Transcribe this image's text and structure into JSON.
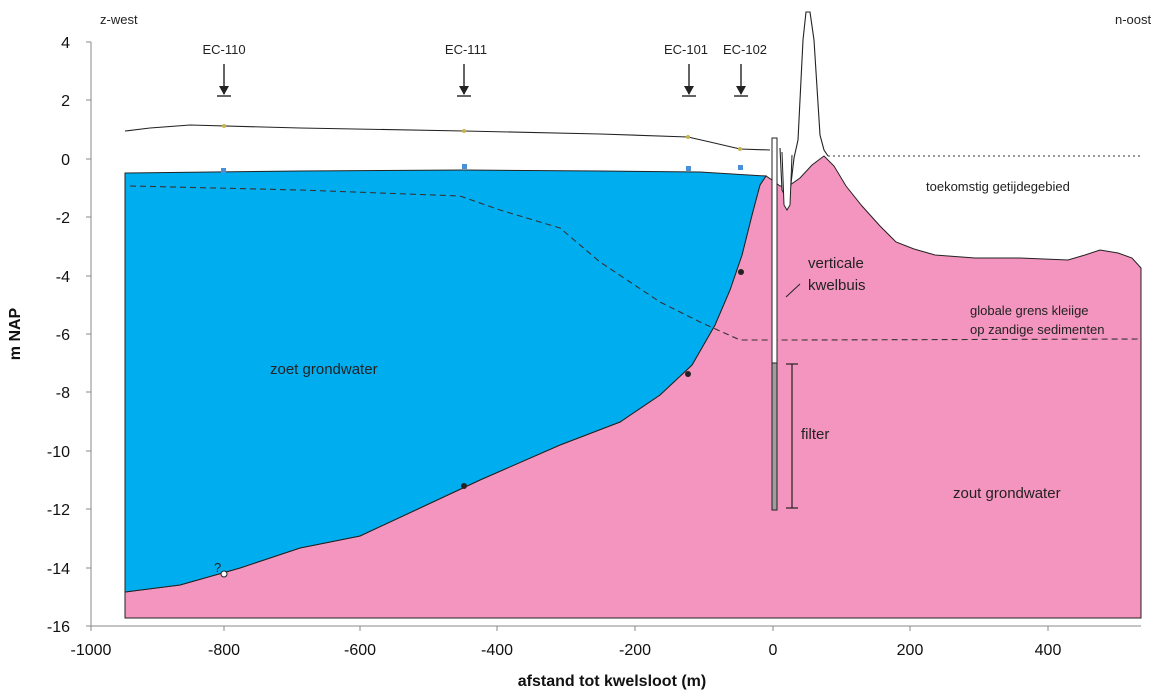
{
  "colors": {
    "fresh": "#00adef",
    "salt": "#f495bf",
    "outline": "#222222"
  },
  "orientation": {
    "left": "z-west",
    "right": "n-oost"
  },
  "axes": {
    "x_title": "afstand tot kwelsloot (m)",
    "y_title": "m NAP",
    "x_ticks": [
      "-1000",
      "-800",
      "-600",
      "-400",
      "-200",
      "0",
      "200",
      "400"
    ],
    "y_ticks": [
      "4",
      "2",
      "0",
      "-2",
      "-4",
      "-6",
      "-8",
      "-10",
      "-12",
      "-14",
      "-16"
    ]
  },
  "wells": [
    {
      "label": "EC-110",
      "x": -800
    },
    {
      "label": "EC-111",
      "x": -450
    },
    {
      "label": "EC-101",
      "x": -125
    },
    {
      "label": "EC-102",
      "x": -50
    }
  ],
  "labels": {
    "future_tidal": "toekomstig getijdegebied",
    "tube_line1": "verticale",
    "tube_line2": "kwelbuis",
    "boundary_line1": "globale grens kleiige",
    "boundary_line2": "op zandige sedimenten",
    "fresh": "zoet grondwater",
    "salt": "zout grondwater",
    "filter": "filter",
    "question": "?"
  }
}
